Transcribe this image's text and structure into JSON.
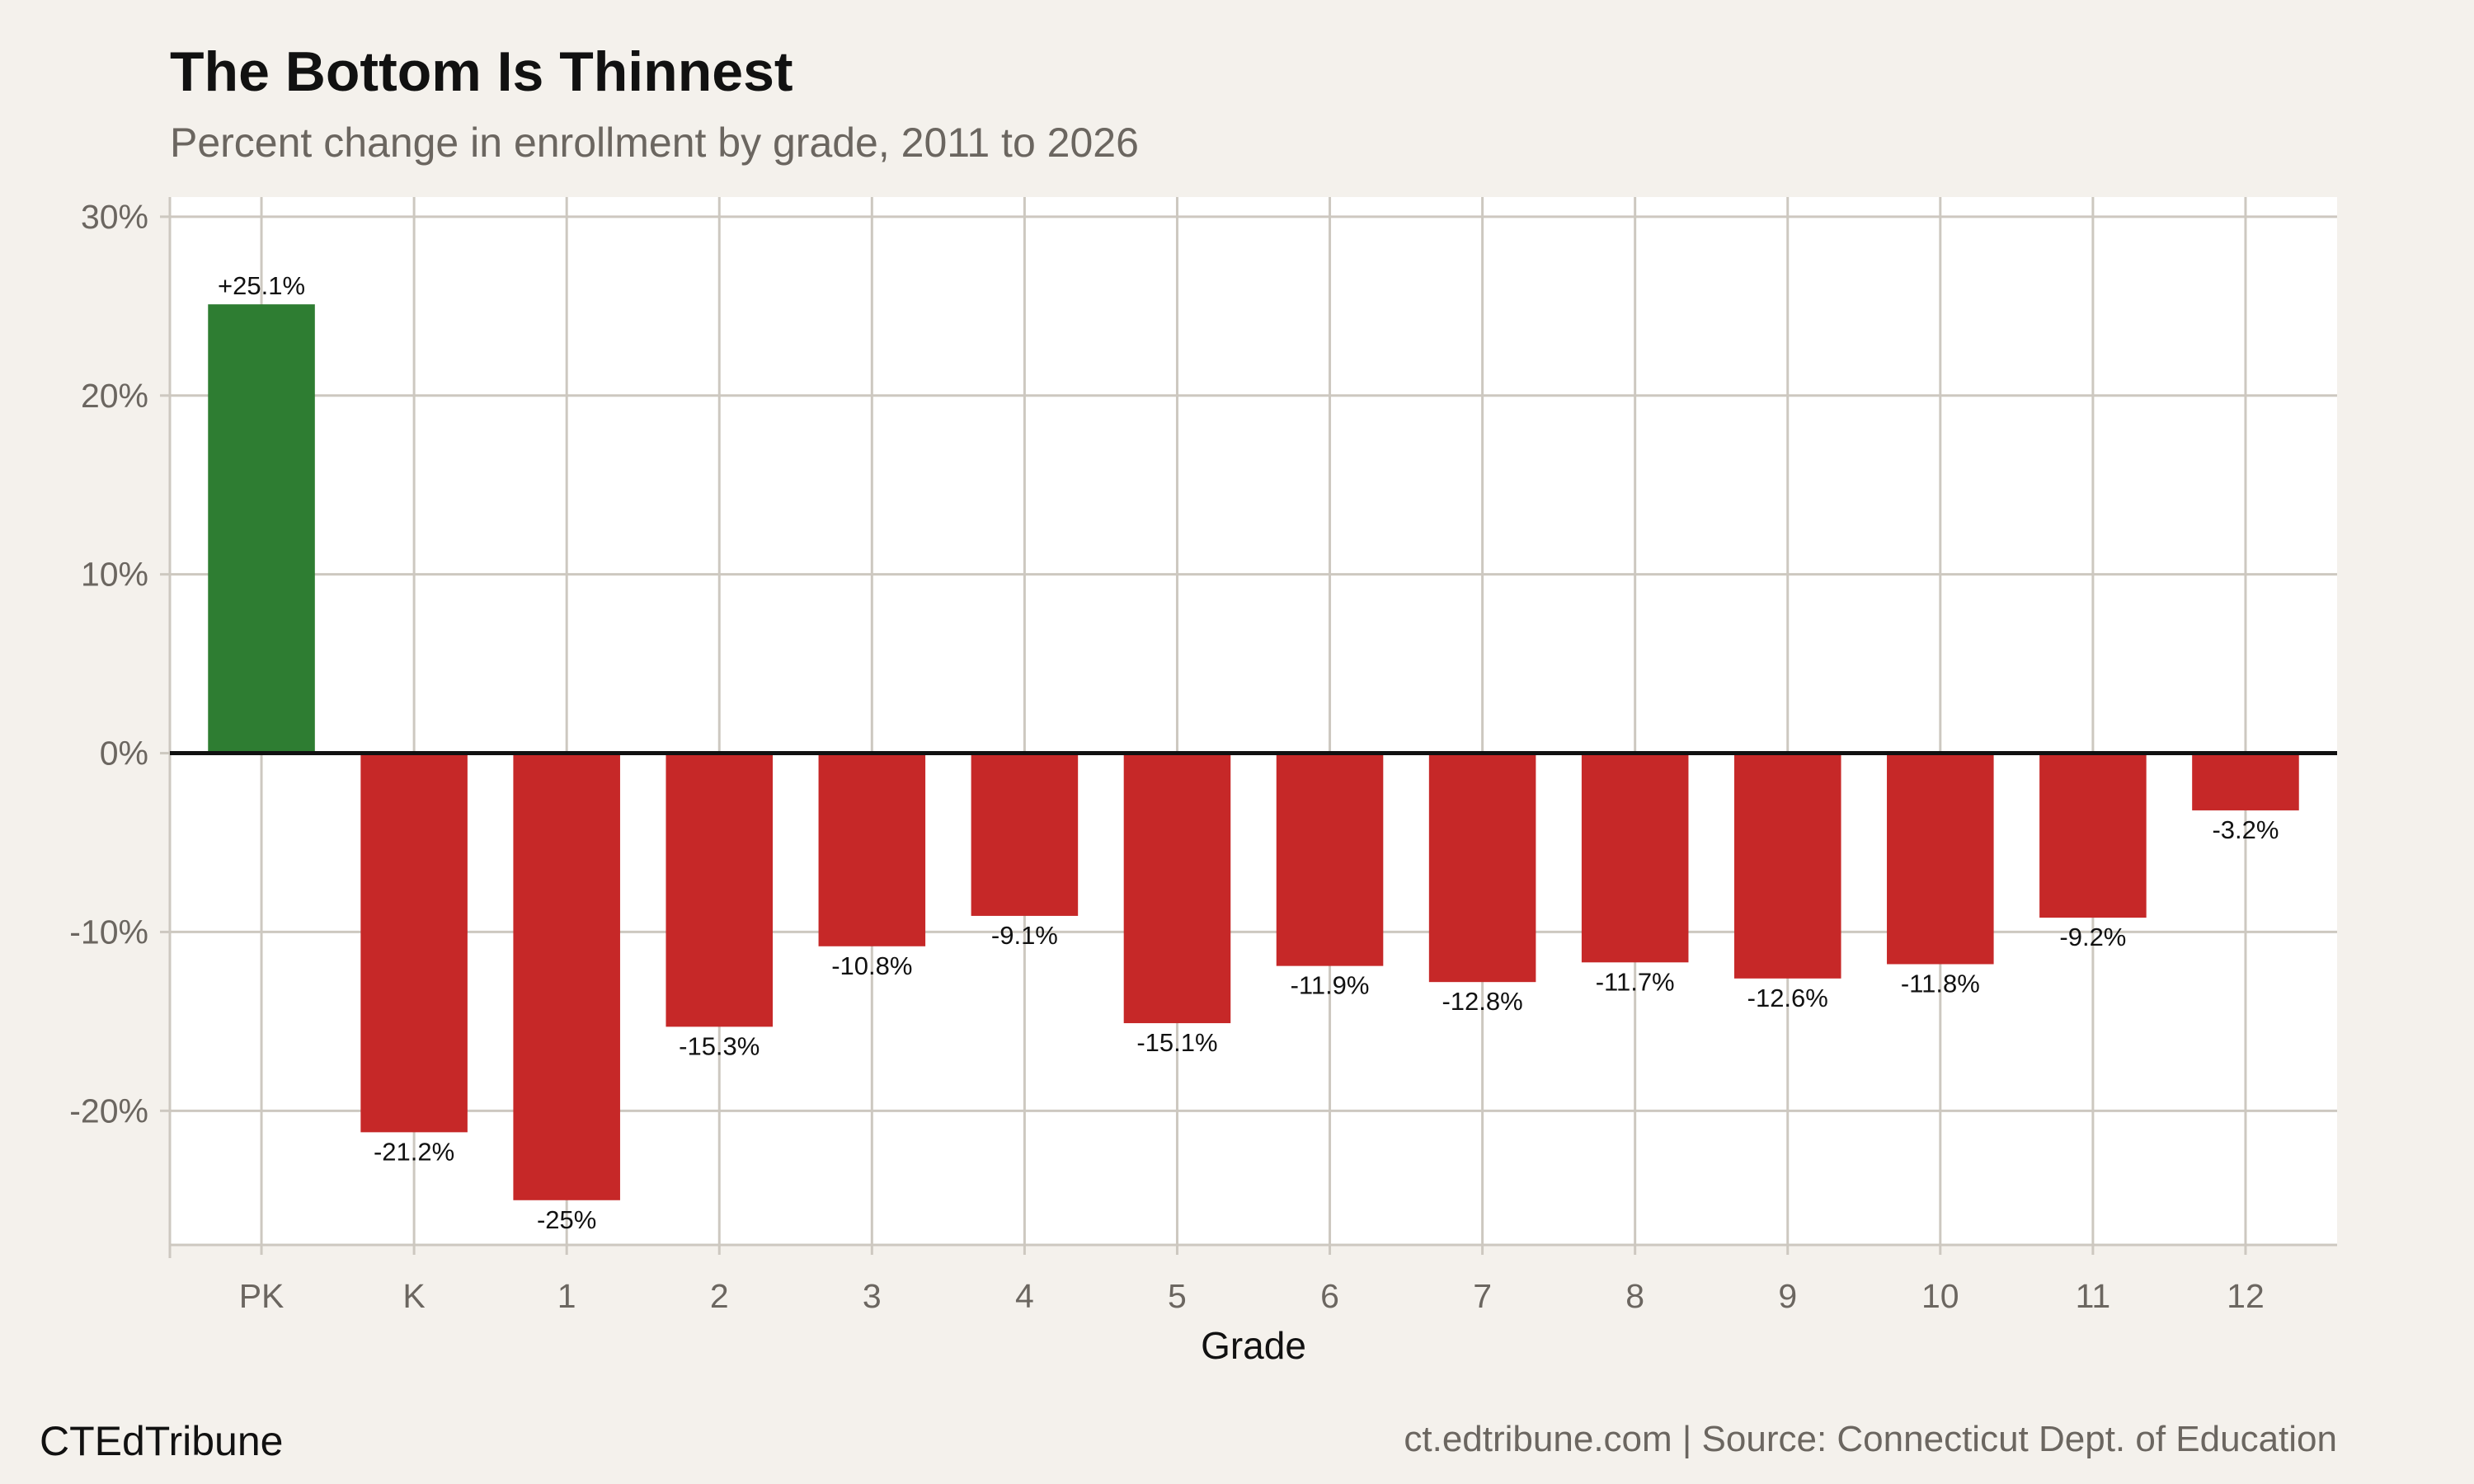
{
  "title": "The Bottom Is Thinnest",
  "subtitle": "Percent change in enrollment by grade, 2011 to 2026",
  "brand": "CTEdTribune",
  "source": "ct.edtribune.com | Source: Connecticut Dept. of Education",
  "chart_data": {
    "type": "bar",
    "title": "The Bottom Is Thinnest",
    "subtitle": "Percent change in enrollment by grade, 2011 to 2026",
    "xlabel": "Grade",
    "ylabel": "",
    "categories": [
      "PK",
      "K",
      "1",
      "2",
      "3",
      "4",
      "5",
      "6",
      "7",
      "8",
      "9",
      "10",
      "11",
      "12"
    ],
    "values": [
      25.1,
      -21.2,
      -25,
      -15.3,
      -10.8,
      -9.1,
      -15.1,
      -11.9,
      -12.8,
      -11.7,
      -12.6,
      -11.8,
      -9.2,
      -3.2
    ],
    "data_labels": [
      "+25.1%",
      "-21.2%",
      "-25%",
      "-15.3%",
      "-10.8%",
      "-9.1%",
      "-15.1%",
      "-11.9%",
      "-12.8%",
      "-11.7%",
      "-12.6%",
      "-11.8%",
      "-9.2%",
      "-3.2%"
    ],
    "yticks": [
      30,
      20,
      10,
      0,
      -10,
      -20
    ],
    "ytick_labels": [
      "30%",
      "20%",
      "10%",
      "0%",
      "-10%",
      "-20%"
    ],
    "ylim": [
      -27.5,
      31.1
    ],
    "grid": true,
    "colors": {
      "positive": "#2e7d32",
      "negative": "#c62828",
      "panel": "#ffffff",
      "background": "#f4f1ec",
      "grid": "#cdc8c0"
    }
  }
}
